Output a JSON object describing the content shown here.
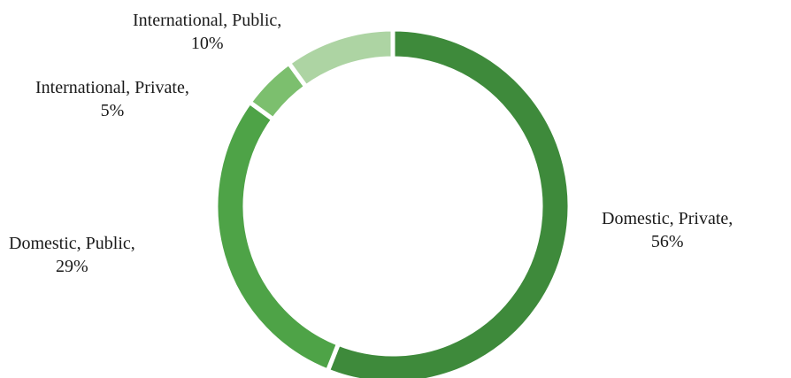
{
  "chart_data": {
    "type": "pie",
    "donut": true,
    "title": "",
    "slices": [
      {
        "category": "Domestic, Private",
        "value": 56,
        "label_category": "Domestic, Private,",
        "label_value": "56%",
        "color": "#3e8a3b"
      },
      {
        "category": "Domestic, Public",
        "value": 29,
        "label_category": "Domestic, Public,",
        "label_value": "29%",
        "color": "#4ea347"
      },
      {
        "category": "International, Private",
        "value": 5,
        "label_category": "International, Private,",
        "label_value": "5%",
        "color": "#7cbf6e"
      },
      {
        "category": "International, Public",
        "value": 10,
        "label_category": "International, Public,",
        "label_value": "10%",
        "color": "#add4a3"
      }
    ],
    "legend": "none",
    "start_angle_deg": 0,
    "direction": "clockwise"
  }
}
